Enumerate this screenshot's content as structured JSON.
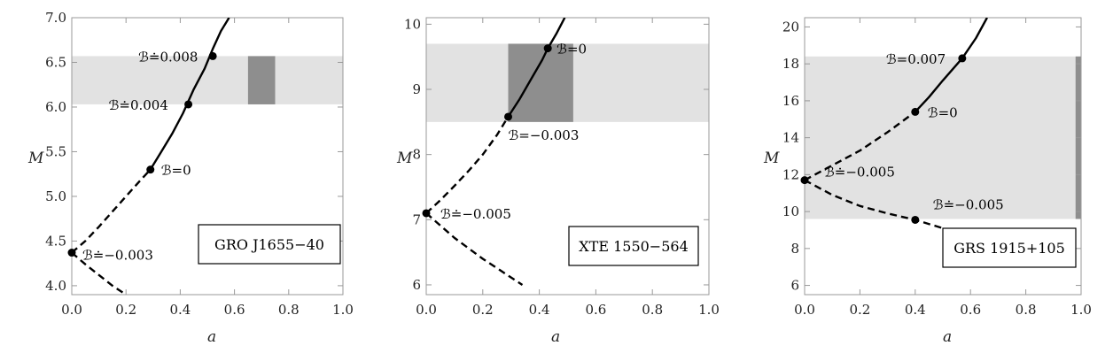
{
  "chart_data": [
    {
      "type": "line",
      "xlabel": "a",
      "ylabel": "M",
      "xlim": [
        0,
        1
      ],
      "ylim": [
        3.9,
        7.0
      ],
      "xticks": [
        "0.0",
        "0.2",
        "0.4",
        "0.6",
        "0.8",
        "1.0"
      ],
      "yticks": [
        "4.0",
        "4.5",
        "5.0",
        "5.5",
        "6.0",
        "6.5",
        "7.0"
      ],
      "label_box": "GRO J1655−40",
      "band_M": [
        6.03,
        6.57
      ],
      "band_a": [
        0.65,
        0.75
      ],
      "series": [
        {
          "style": "solid",
          "x": [
            0.29,
            0.33,
            0.37,
            0.41,
            0.45,
            0.49,
            0.52,
            0.55,
            0.58
          ],
          "y": [
            5.3,
            5.5,
            5.7,
            5.93,
            6.2,
            6.43,
            6.65,
            6.85,
            7.0
          ]
        },
        {
          "style": "dashed",
          "x": [
            0.0,
            0.05,
            0.1,
            0.15,
            0.2,
            0.25,
            0.29
          ],
          "y": [
            4.37,
            4.5,
            4.66,
            4.83,
            5.0,
            5.17,
            5.3
          ]
        },
        {
          "style": "dashed",
          "x": [
            0.0,
            0.05,
            0.1,
            0.15,
            0.2
          ],
          "y": [
            4.37,
            4.24,
            4.12,
            4.0,
            3.9
          ]
        }
      ],
      "points": [
        {
          "x": 0.52,
          "y": 6.57,
          "label": "ℬ≐0.008"
        },
        {
          "x": 0.43,
          "y": 6.03,
          "label": "ℬ≐0.004"
        },
        {
          "x": 0.29,
          "y": 5.3,
          "label": "ℬ=0"
        },
        {
          "x": 0.0,
          "y": 4.37,
          "label": "ℬ≐−0.003"
        }
      ]
    },
    {
      "type": "line",
      "xlabel": "a",
      "ylabel": "M",
      "xlim": [
        0,
        1
      ],
      "ylim": [
        5.85,
        10.1
      ],
      "xticks": [
        "0.0",
        "0.2",
        "0.4",
        "0.6",
        "0.8",
        "1.0"
      ],
      "yticks": [
        "6",
        "7",
        "8",
        "9",
        "10"
      ],
      "label_box": "XTE 1550−564",
      "band_M": [
        8.5,
        9.7
      ],
      "band_a": [
        0.29,
        0.52
      ],
      "series": [
        {
          "style": "solid",
          "x": [
            0.29,
            0.33,
            0.37,
            0.41,
            0.43,
            0.46,
            0.49
          ],
          "y": [
            8.58,
            8.85,
            9.15,
            9.45,
            9.63,
            9.85,
            10.1
          ]
        },
        {
          "style": "dashed",
          "x": [
            0.0,
            0.05,
            0.1,
            0.15,
            0.2,
            0.25,
            0.29
          ],
          "y": [
            7.1,
            7.3,
            7.52,
            7.75,
            8.0,
            8.3,
            8.58
          ]
        },
        {
          "style": "dashed",
          "x": [
            0.0,
            0.1,
            0.2,
            0.34
          ],
          "y": [
            7.1,
            6.72,
            6.4,
            6.0
          ]
        }
      ],
      "points": [
        {
          "x": 0.43,
          "y": 9.63,
          "label": "ℬ=0"
        },
        {
          "x": 0.29,
          "y": 8.58,
          "label": "ℬ=−0.003"
        },
        {
          "x": 0.0,
          "y": 7.1,
          "label": "ℬ≐−0.005"
        }
      ]
    },
    {
      "type": "line",
      "xlabel": "a",
      "ylabel": "M",
      "xlim": [
        0,
        1
      ],
      "ylim": [
        5.5,
        20.5
      ],
      "xticks": [
        "0.0",
        "0.2",
        "0.4",
        "0.6",
        "0.8",
        "1.0"
      ],
      "yticks": [
        "6",
        "8",
        "10",
        "12",
        "14",
        "16",
        "18",
        "20"
      ],
      "label_box": "GRS 1915+105",
      "band_M": [
        9.6,
        18.4
      ],
      "band_a": [
        0.98,
        1.0
      ],
      "series": [
        {
          "style": "solid",
          "x": [
            0.4,
            0.45,
            0.5,
            0.57,
            0.62,
            0.66
          ],
          "y": [
            15.4,
            16.2,
            17.1,
            18.3,
            19.4,
            20.5
          ]
        },
        {
          "style": "dashed",
          "x": [
            0.0,
            0.1,
            0.2,
            0.3,
            0.4
          ],
          "y": [
            11.7,
            12.5,
            13.3,
            14.3,
            15.4
          ]
        },
        {
          "style": "dashed",
          "x": [
            0.0,
            0.1,
            0.2,
            0.3,
            0.4,
            0.5
          ],
          "y": [
            11.7,
            10.9,
            10.3,
            9.9,
            9.55,
            9.1
          ]
        }
      ],
      "points": [
        {
          "x": 0.57,
          "y": 18.3,
          "label": "ℬ=0.007"
        },
        {
          "x": 0.4,
          "y": 15.4,
          "label": "ℬ=0"
        },
        {
          "x": 0.0,
          "y": 11.7,
          "label": "ℬ≐−0.005"
        },
        {
          "x": 0.4,
          "y": 9.55,
          "label": "ℬ≐−0.005"
        }
      ]
    }
  ]
}
